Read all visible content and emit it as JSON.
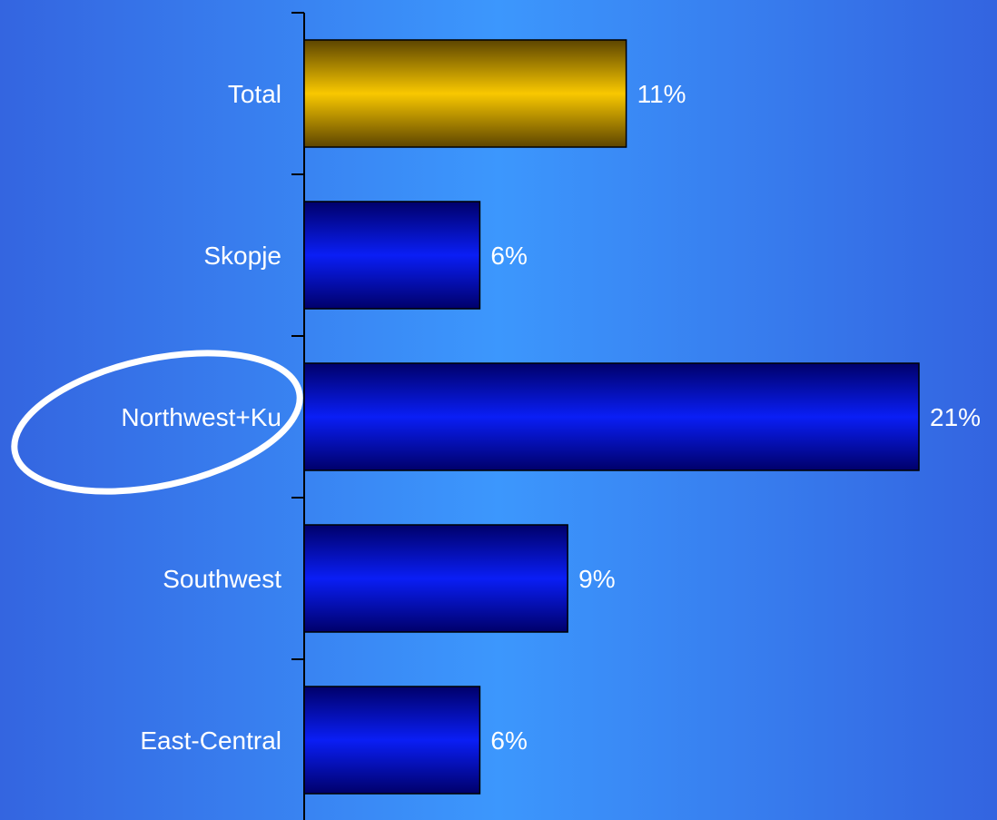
{
  "chart_data": {
    "type": "bar",
    "orientation": "horizontal",
    "categories": [
      "Total",
      "Skopje",
      "Northwest+Ku",
      "Southwest",
      "East-Central"
    ],
    "values": [
      11,
      6,
      21,
      9,
      6
    ],
    "value_labels": [
      "11%",
      "6%",
      "21%",
      "9%",
      "6%"
    ],
    "unit": "%",
    "xlim": [
      0,
      21
    ],
    "highlighted_category": "Northwest+Ku",
    "grid": false,
    "legend": "none",
    "title": "",
    "xlabel": "",
    "ylabel": ""
  },
  "colors": {
    "background_center": "#3c97fd",
    "background_edge": "#3364e0",
    "total_bar": "#f9c800",
    "total_bar_edge": "#5c4400",
    "region_bar": "#0a1ef5",
    "region_bar_edge": "#00006a",
    "highlight_ellipse": "#ffffff",
    "text": "#ffffff"
  }
}
